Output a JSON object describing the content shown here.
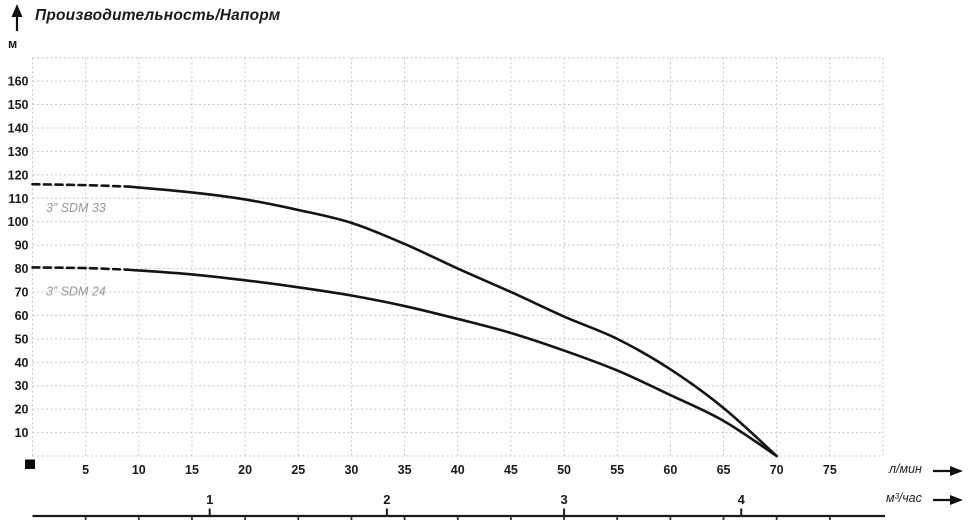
{
  "chart_data": {
    "type": "line",
    "title": "Производительность/Напорм",
    "grid": true,
    "legend_position": "inline-left-of-curves",
    "y_axis": {
      "unit": "м",
      "min": 0,
      "max": 170,
      "grid_step": 10,
      "labeled_ticks": [
        160,
        150,
        140,
        130,
        120,
        110,
        100,
        90,
        80,
        70,
        60,
        50,
        40,
        30,
        20,
        10
      ]
    },
    "x_axis": {
      "unit": "л/мин",
      "min": 0,
      "max": 80,
      "grid_step": 5,
      "labeled_ticks": [
        5,
        10,
        15,
        20,
        25,
        30,
        35,
        40,
        45,
        50,
        55,
        60,
        65,
        70,
        75
      ]
    },
    "x_axis_secondary": {
      "unit": "м³/час",
      "labeled_ticks": [
        1,
        2,
        3,
        4
      ],
      "lpm_per_m3h": 16.6667
    },
    "series": [
      {
        "name": "3” SDM 33",
        "dashed_until_x": 9,
        "points": [
          [
            0,
            116
          ],
          [
            5,
            115.6
          ],
          [
            9,
            115
          ],
          [
            15,
            112.5
          ],
          [
            20,
            109.5
          ],
          [
            25,
            105
          ],
          [
            30,
            99.5
          ],
          [
            35,
            90.5
          ],
          [
            40,
            80
          ],
          [
            45,
            70
          ],
          [
            50,
            59.5
          ],
          [
            55,
            50
          ],
          [
            60,
            37
          ],
          [
            65,
            20.5
          ],
          [
            70,
            0
          ]
        ]
      },
      {
        "name": "3” SDM 24",
        "dashed_until_x": 9,
        "points": [
          [
            0,
            80.5
          ],
          [
            5,
            80.2
          ],
          [
            9,
            79.5
          ],
          [
            15,
            77.5
          ],
          [
            20,
            75
          ],
          [
            25,
            72
          ],
          [
            30,
            68.5
          ],
          [
            35,
            64
          ],
          [
            40,
            58.5
          ],
          [
            45,
            52.5
          ],
          [
            50,
            45
          ],
          [
            55,
            36.5
          ],
          [
            60,
            26
          ],
          [
            65,
            15
          ],
          [
            70,
            0
          ]
        ]
      }
    ]
  },
  "colors": {
    "curve": "#141414",
    "grid": "#c8c8c8",
    "series_label": "#98989c",
    "text": "#1a1a1a"
  }
}
